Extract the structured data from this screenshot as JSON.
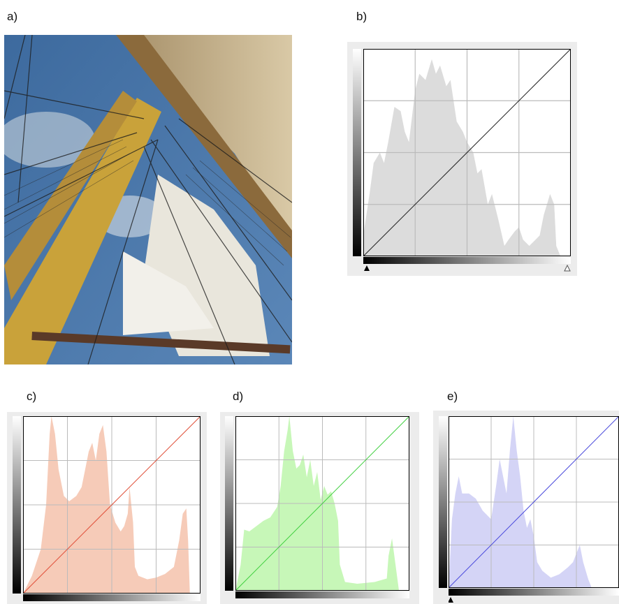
{
  "labels": [
    "a)",
    "b)",
    "c)",
    "d)",
    "e)"
  ]
}
